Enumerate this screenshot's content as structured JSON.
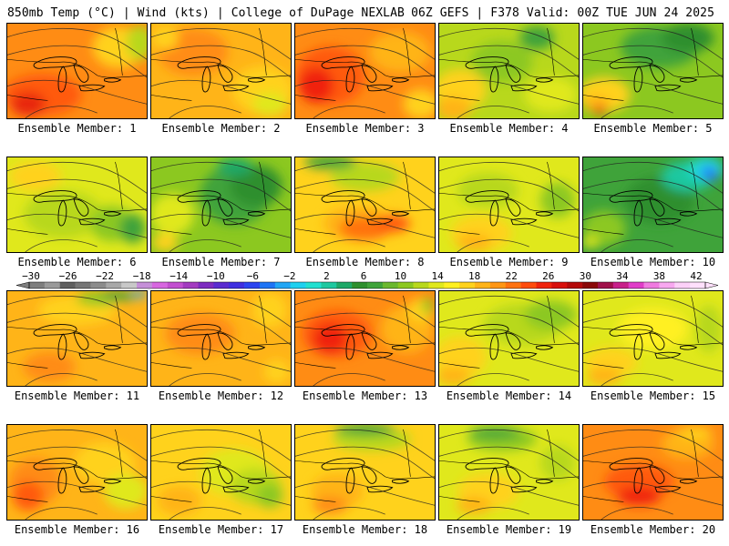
{
  "header": {
    "left": "850mb Temp (°C) | Wind (kts) | College of DuPage NEXLAB",
    "right": "06Z GEFS | F378 Valid: 00Z TUE JUN 24 2025"
  },
  "colorbar": {
    "labels": [
      "−30",
      "−26",
      "−22",
      "−18",
      "−14",
      "−10",
      "−6",
      "−2",
      "2",
      "6",
      "10",
      "14",
      "18",
      "22",
      "26",
      "30",
      "34",
      "38",
      "42"
    ],
    "colors": [
      "#7e7e7e",
      "#9a9a9a",
      "#5f5f5f",
      "#767676",
      "#8c8c8c",
      "#a8a8a8",
      "#c8c8c8",
      "#c58fd8",
      "#d767e0",
      "#c24fd0",
      "#a33bc0",
      "#7d2bc0",
      "#5a2bd0",
      "#3e2fe0",
      "#2a44f0",
      "#1e74f5",
      "#22a6f5",
      "#1ed0f0",
      "#22e0d0",
      "#1ec8a0",
      "#1ea868",
      "#2e8f2e",
      "#3fa33a",
      "#6bb82e",
      "#8cc820",
      "#b8d81c",
      "#e0e81c",
      "#fff020",
      "#ffd21c",
      "#ffb418",
      "#ff9614",
      "#ff7210",
      "#ff4c0c",
      "#f0240c",
      "#d8100c",
      "#b40a0a",
      "#8a0808",
      "#a0104a",
      "#c8208a",
      "#e03cc8",
      "#f07ae0",
      "#f8a8f0",
      "#fcd0f8",
      "#ffe0fc"
    ]
  },
  "members": [
    {
      "label": "Ensemble Member: 1",
      "base": "#ff8c14",
      "blobs": [
        [
          "#ff5a10",
          0.25,
          0.75,
          0.45,
          0.35
        ],
        [
          "#e8280c",
          0.15,
          0.85,
          0.2,
          0.2
        ],
        [
          "#ffd21c",
          0.8,
          0.25,
          0.3,
          0.35
        ],
        [
          "#b8d81c",
          0.95,
          0.2,
          0.15,
          0.3
        ]
      ]
    },
    {
      "label": "Ensemble Member: 2",
      "base": "#ffb418",
      "blobs": [
        [
          "#ff8c14",
          0.3,
          0.3,
          0.4,
          0.4
        ],
        [
          "#ffd21c",
          0.8,
          0.7,
          0.35,
          0.4
        ],
        [
          "#e0e81c",
          0.85,
          0.85,
          0.2,
          0.2
        ],
        [
          "#ffd21c",
          0.1,
          0.15,
          0.15,
          0.2
        ]
      ]
    },
    {
      "label": "Ensemble Member: 3",
      "base": "#ff8c14",
      "blobs": [
        [
          "#ff5a10",
          0.25,
          0.55,
          0.4,
          0.5
        ],
        [
          "#f0240c",
          0.15,
          0.65,
          0.2,
          0.3
        ],
        [
          "#ffb418",
          0.75,
          0.3,
          0.35,
          0.35
        ],
        [
          "#ffd21c",
          0.9,
          0.85,
          0.2,
          0.25
        ]
      ]
    },
    {
      "label": "Ensemble Member: 4",
      "base": "#b8d81c",
      "blobs": [
        [
          "#8cc820",
          0.45,
          0.4,
          0.35,
          0.35
        ],
        [
          "#3fa33a",
          0.7,
          0.15,
          0.2,
          0.2
        ],
        [
          "#ffd21c",
          0.15,
          0.7,
          0.3,
          0.35
        ],
        [
          "#ffb418",
          0.1,
          0.9,
          0.2,
          0.2
        ],
        [
          "#e0e81c",
          0.8,
          0.75,
          0.3,
          0.3
        ]
      ]
    },
    {
      "label": "Ensemble Member: 5",
      "base": "#8cc820",
      "blobs": [
        [
          "#3fa33a",
          0.55,
          0.25,
          0.45,
          0.35
        ],
        [
          "#2e8f2e",
          0.75,
          0.15,
          0.3,
          0.25
        ],
        [
          "#ffd21c",
          0.15,
          0.75,
          0.3,
          0.3
        ],
        [
          "#ffb418",
          0.1,
          0.85,
          0.15,
          0.15
        ],
        [
          "#e8280c",
          0.12,
          0.92,
          0.06,
          0.08
        ]
      ]
    },
    {
      "label": "Ensemble Member: 6",
      "base": "#e0e81c",
      "blobs": [
        [
          "#b8d81c",
          0.4,
          0.6,
          0.45,
          0.4
        ],
        [
          "#8cc820",
          0.75,
          0.7,
          0.25,
          0.3
        ],
        [
          "#3fa33a",
          0.9,
          0.75,
          0.15,
          0.25
        ],
        [
          "#ffd21c",
          0.2,
          0.2,
          0.3,
          0.25
        ]
      ]
    },
    {
      "label": "Ensemble Member: 7",
      "base": "#8cc820",
      "blobs": [
        [
          "#3fa33a",
          0.6,
          0.4,
          0.4,
          0.5
        ],
        [
          "#2e8f2e",
          0.75,
          0.3,
          0.3,
          0.35
        ],
        [
          "#1ea868",
          0.6,
          0.1,
          0.2,
          0.15
        ],
        [
          "#e0e81c",
          0.15,
          0.6,
          0.25,
          0.35
        ],
        [
          "#ffd21c",
          0.1,
          0.9,
          0.15,
          0.15
        ]
      ]
    },
    {
      "label": "Ensemble Member: 8",
      "base": "#ffd21c",
      "blobs": [
        [
          "#ffb418",
          0.45,
          0.7,
          0.4,
          0.3
        ],
        [
          "#ff7210",
          0.5,
          0.75,
          0.3,
          0.2
        ],
        [
          "#ff5a10",
          0.7,
          0.7,
          0.2,
          0.15
        ],
        [
          "#b8d81c",
          0.5,
          0.2,
          0.4,
          0.25
        ],
        [
          "#3fa33a",
          0.25,
          0.05,
          0.3,
          0.12
        ]
      ]
    },
    {
      "label": "Ensemble Member: 9",
      "base": "#e0e81c",
      "blobs": [
        [
          "#b8d81c",
          0.35,
          0.35,
          0.35,
          0.3
        ],
        [
          "#ffd21c",
          0.3,
          0.8,
          0.35,
          0.3
        ],
        [
          "#ffb418",
          0.25,
          0.9,
          0.2,
          0.15
        ],
        [
          "#8cc820",
          0.85,
          0.45,
          0.2,
          0.3
        ]
      ]
    },
    {
      "label": "Ensemble Member: 10",
      "base": "#3fa33a",
      "blobs": [
        [
          "#2e8f2e",
          0.55,
          0.45,
          0.4,
          0.4
        ],
        [
          "#1ec8a0",
          0.75,
          0.2,
          0.3,
          0.25
        ],
        [
          "#22e0d0",
          0.88,
          0.12,
          0.2,
          0.2
        ],
        [
          "#22a6f5",
          0.9,
          0.15,
          0.12,
          0.14
        ],
        [
          "#2a44f0",
          0.92,
          0.2,
          0.06,
          0.08
        ],
        [
          "#8cc820",
          0.15,
          0.75,
          0.25,
          0.3
        ],
        [
          "#e0e81c",
          0.05,
          0.9,
          0.1,
          0.1
        ]
      ]
    },
    {
      "label": "Ensemble Member: 11",
      "base": "#ffb418",
      "blobs": [
        [
          "#ffd21c",
          0.5,
          0.2,
          0.45,
          0.25
        ],
        [
          "#8cc820",
          0.65,
          0.08,
          0.25,
          0.12
        ],
        [
          "#3fa33a",
          0.8,
          0.05,
          0.2,
          0.08
        ],
        [
          "#22a6f5",
          0.95,
          0.03,
          0.08,
          0.06
        ],
        [
          "#ff8c14",
          0.3,
          0.8,
          0.3,
          0.25
        ]
      ]
    },
    {
      "label": "Ensemble Member: 12",
      "base": "#ffb418",
      "blobs": [
        [
          "#ff8c14",
          0.35,
          0.45,
          0.4,
          0.35
        ],
        [
          "#ffd21c",
          0.85,
          0.2,
          0.2,
          0.3
        ],
        [
          "#ffd21c",
          0.9,
          0.85,
          0.15,
          0.2
        ]
      ]
    },
    {
      "label": "Ensemble Member: 13",
      "base": "#ff8c14",
      "blobs": [
        [
          "#ff5a10",
          0.3,
          0.45,
          0.4,
          0.4
        ],
        [
          "#f0240c",
          0.25,
          0.5,
          0.2,
          0.25
        ],
        [
          "#ffb418",
          0.8,
          0.4,
          0.3,
          0.4
        ],
        [
          "#ffd21c",
          0.9,
          0.2,
          0.15,
          0.2
        ],
        [
          "#8cc820",
          0.95,
          0.15,
          0.06,
          0.15
        ]
      ]
    },
    {
      "label": "Ensemble Member: 14",
      "base": "#e0e81c",
      "blobs": [
        [
          "#b8d81c",
          0.6,
          0.35,
          0.45,
          0.35
        ],
        [
          "#8cc820",
          0.8,
          0.25,
          0.3,
          0.25
        ],
        [
          "#ffd21c",
          0.15,
          0.7,
          0.3,
          0.35
        ],
        [
          "#ffb418",
          0.1,
          0.9,
          0.2,
          0.15
        ]
      ]
    },
    {
      "label": "Ensemble Member: 15",
      "base": "#e0e81c",
      "blobs": [
        [
          "#fff020",
          0.5,
          0.4,
          0.4,
          0.35
        ],
        [
          "#b8d81c",
          0.9,
          0.4,
          0.15,
          0.4
        ],
        [
          "#ffd21c",
          0.2,
          0.75,
          0.3,
          0.25
        ],
        [
          "#ffb418",
          0.15,
          0.9,
          0.2,
          0.15
        ]
      ]
    },
    {
      "label": "Ensemble Member: 16",
      "base": "#ffb418",
      "blobs": [
        [
          "#ff8c14",
          0.2,
          0.6,
          0.3,
          0.4
        ],
        [
          "#ff5a10",
          0.15,
          0.75,
          0.18,
          0.25
        ],
        [
          "#ffd21c",
          0.7,
          0.4,
          0.35,
          0.35
        ],
        [
          "#e0e81c",
          0.85,
          0.7,
          0.25,
          0.3
        ]
      ]
    },
    {
      "label": "Ensemble Member: 17",
      "base": "#ffd21c",
      "blobs": [
        [
          "#e0e81c",
          0.6,
          0.5,
          0.4,
          0.4
        ],
        [
          "#b8d81c",
          0.75,
          0.65,
          0.3,
          0.3
        ],
        [
          "#8cc820",
          0.85,
          0.75,
          0.15,
          0.2
        ],
        [
          "#ffb418",
          0.2,
          0.8,
          0.25,
          0.25
        ]
      ]
    },
    {
      "label": "Ensemble Member: 18",
      "base": "#ffd21c",
      "blobs": [
        [
          "#b8d81c",
          0.55,
          0.15,
          0.45,
          0.2
        ],
        [
          "#3fa33a",
          0.5,
          0.05,
          0.35,
          0.1
        ],
        [
          "#ffb418",
          0.3,
          0.7,
          0.3,
          0.3
        ],
        [
          "#ff8c14",
          0.25,
          0.85,
          0.2,
          0.15
        ]
      ]
    },
    {
      "label": "Ensemble Member: 19",
      "base": "#e0e81c",
      "blobs": [
        [
          "#8cc820",
          0.45,
          0.15,
          0.4,
          0.2
        ],
        [
          "#3fa33a",
          0.4,
          0.08,
          0.3,
          0.1
        ],
        [
          "#ffd21c",
          0.35,
          0.7,
          0.35,
          0.3
        ],
        [
          "#ffb418",
          0.25,
          0.85,
          0.2,
          0.15
        ],
        [
          "#b8d81c",
          0.85,
          0.4,
          0.2,
          0.3
        ]
      ]
    },
    {
      "label": "Ensemble Member: 20",
      "base": "#ff8c14",
      "blobs": [
        [
          "#ff5a10",
          0.4,
          0.6,
          0.4,
          0.3
        ],
        [
          "#f0240c",
          0.4,
          0.75,
          0.25,
          0.15
        ],
        [
          "#ffb418",
          0.75,
          0.2,
          0.3,
          0.25
        ],
        [
          "#ffd21c",
          0.8,
          0.08,
          0.2,
          0.1
        ]
      ]
    }
  ]
}
